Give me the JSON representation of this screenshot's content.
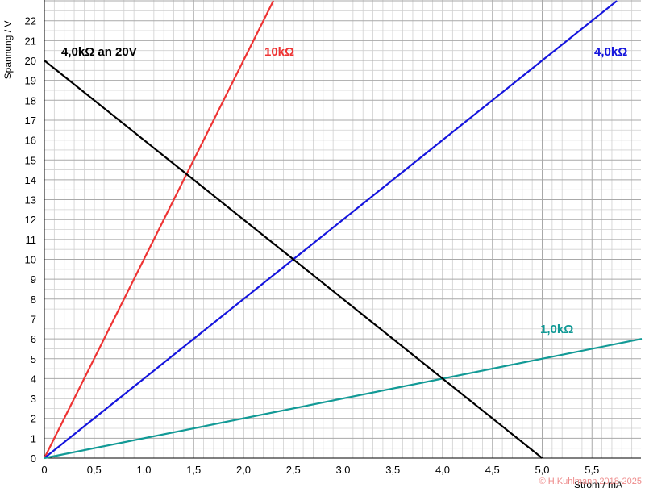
{
  "chart_data": {
    "type": "line",
    "xlabel": "Strom / mA",
    "ylabel": "Spannung / V",
    "xlim": [
      0,
      6
    ],
    "ylim": [
      0,
      23
    ],
    "x_ticks": [
      "0",
      "0,5",
      "1,0",
      "1,5",
      "2,0",
      "2,5",
      "3,0",
      "3,5",
      "4,0",
      "4,5",
      "5,0",
      "5,5"
    ],
    "y_ticks": [
      "0",
      "1",
      "2",
      "3",
      "4",
      "5",
      "6",
      "7",
      "8",
      "9",
      "10",
      "11",
      "12",
      "13",
      "14",
      "15",
      "16",
      "17",
      "18",
      "19",
      "20",
      "21",
      "22"
    ],
    "grid": true,
    "series": [
      {
        "name": "10kΩ",
        "color": "#ee3333",
        "x": [
          0,
          2.3
        ],
        "y": [
          0,
          23
        ]
      },
      {
        "name": "4,0kΩ",
        "color": "#1515dd",
        "x": [
          0,
          5.75
        ],
        "y": [
          0,
          23
        ]
      },
      {
        "name": "1,0kΩ",
        "color": "#129a96",
        "x": [
          0,
          6
        ],
        "y": [
          0,
          6
        ]
      },
      {
        "name": "4,0kΩ an 20V",
        "color": "#000000",
        "x": [
          0,
          5
        ],
        "y": [
          20,
          0
        ]
      }
    ],
    "copyright": "© H.Kuhlmann 2018-2025"
  }
}
